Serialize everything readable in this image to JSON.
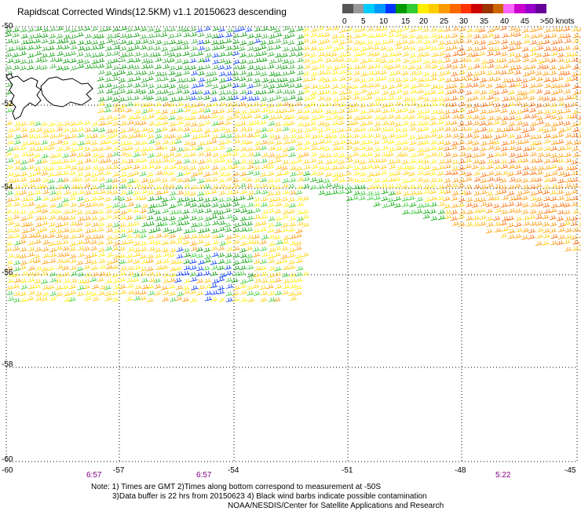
{
  "title": "Rapidscat Corrected Winds(12.5KM) v1.1 20150623 descending",
  "legend": {
    "colors": [
      "#555555",
      "#999999",
      "#00ccff",
      "#0099ff",
      "#0033ff",
      "#009900",
      "#33cc33",
      "#ffee00",
      "#ffcc00",
      "#ff9900",
      "#ff6600",
      "#ff3300",
      "#cc0000",
      "#993300",
      "#cc6600",
      "#ff66ff",
      "#cc00cc",
      "#9900cc",
      "#660099"
    ],
    "labels": [
      "0",
      "5",
      "10",
      "15",
      "20",
      "25",
      "30",
      "35",
      "40",
      "45",
      ">50 knots"
    ]
  },
  "axes": {
    "lat_labels": [
      "-50",
      "-52",
      "-54",
      "-56",
      "-58",
      "-60"
    ],
    "lon_labels": [
      "-60",
      "-57",
      "-54",
      "-51",
      "-48",
      "-45"
    ],
    "time_labels": [
      "6:57",
      "6:57",
      "5:22"
    ]
  },
  "notes": [
    "Note: 1) Times are GMT 2)Times along bottom correspond to measurement at -50S",
    "3)Data buffer is 22 hrs from 20150623 4) Black wind barbs indicate possible contamination",
    "NOAA/NESDIS/Center for Satellite Applications and Research"
  ]
}
